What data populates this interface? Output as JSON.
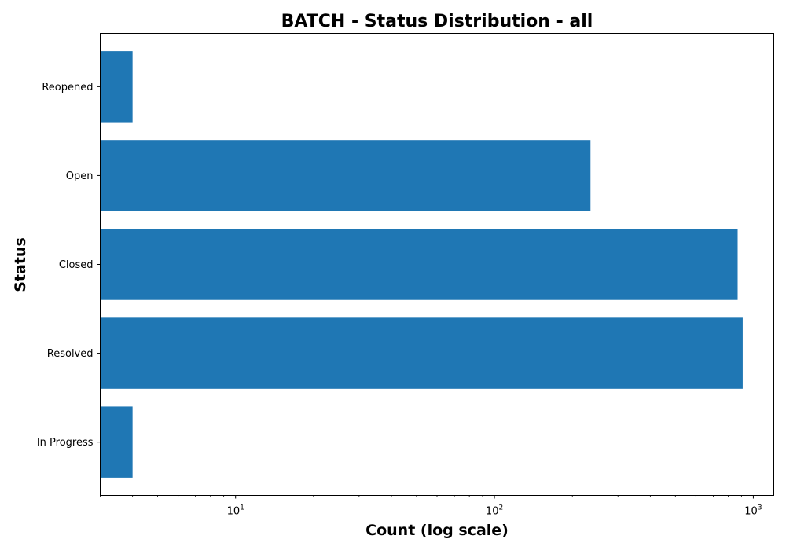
{
  "chart_data": {
    "type": "bar",
    "orientation": "horizontal",
    "title": "BATCH - Status Distribution - all",
    "xlabel": "Count (log scale)",
    "ylabel": "Status",
    "xscale": "log",
    "xlim": [
      3,
      1200
    ],
    "categories": [
      "In Progress",
      "Resolved",
      "Closed",
      "Open",
      "Reopened"
    ],
    "values": [
      4,
      910,
      870,
      235,
      4
    ],
    "x_major_ticks": [
      {
        "value": 10,
        "base": "10",
        "exponent": "1"
      },
      {
        "value": 100,
        "base": "10",
        "exponent": "2"
      },
      {
        "value": 1000,
        "base": "10",
        "exponent": "3"
      }
    ],
    "bar_color": "#1f77b4",
    "grid": false,
    "legend": "none"
  }
}
